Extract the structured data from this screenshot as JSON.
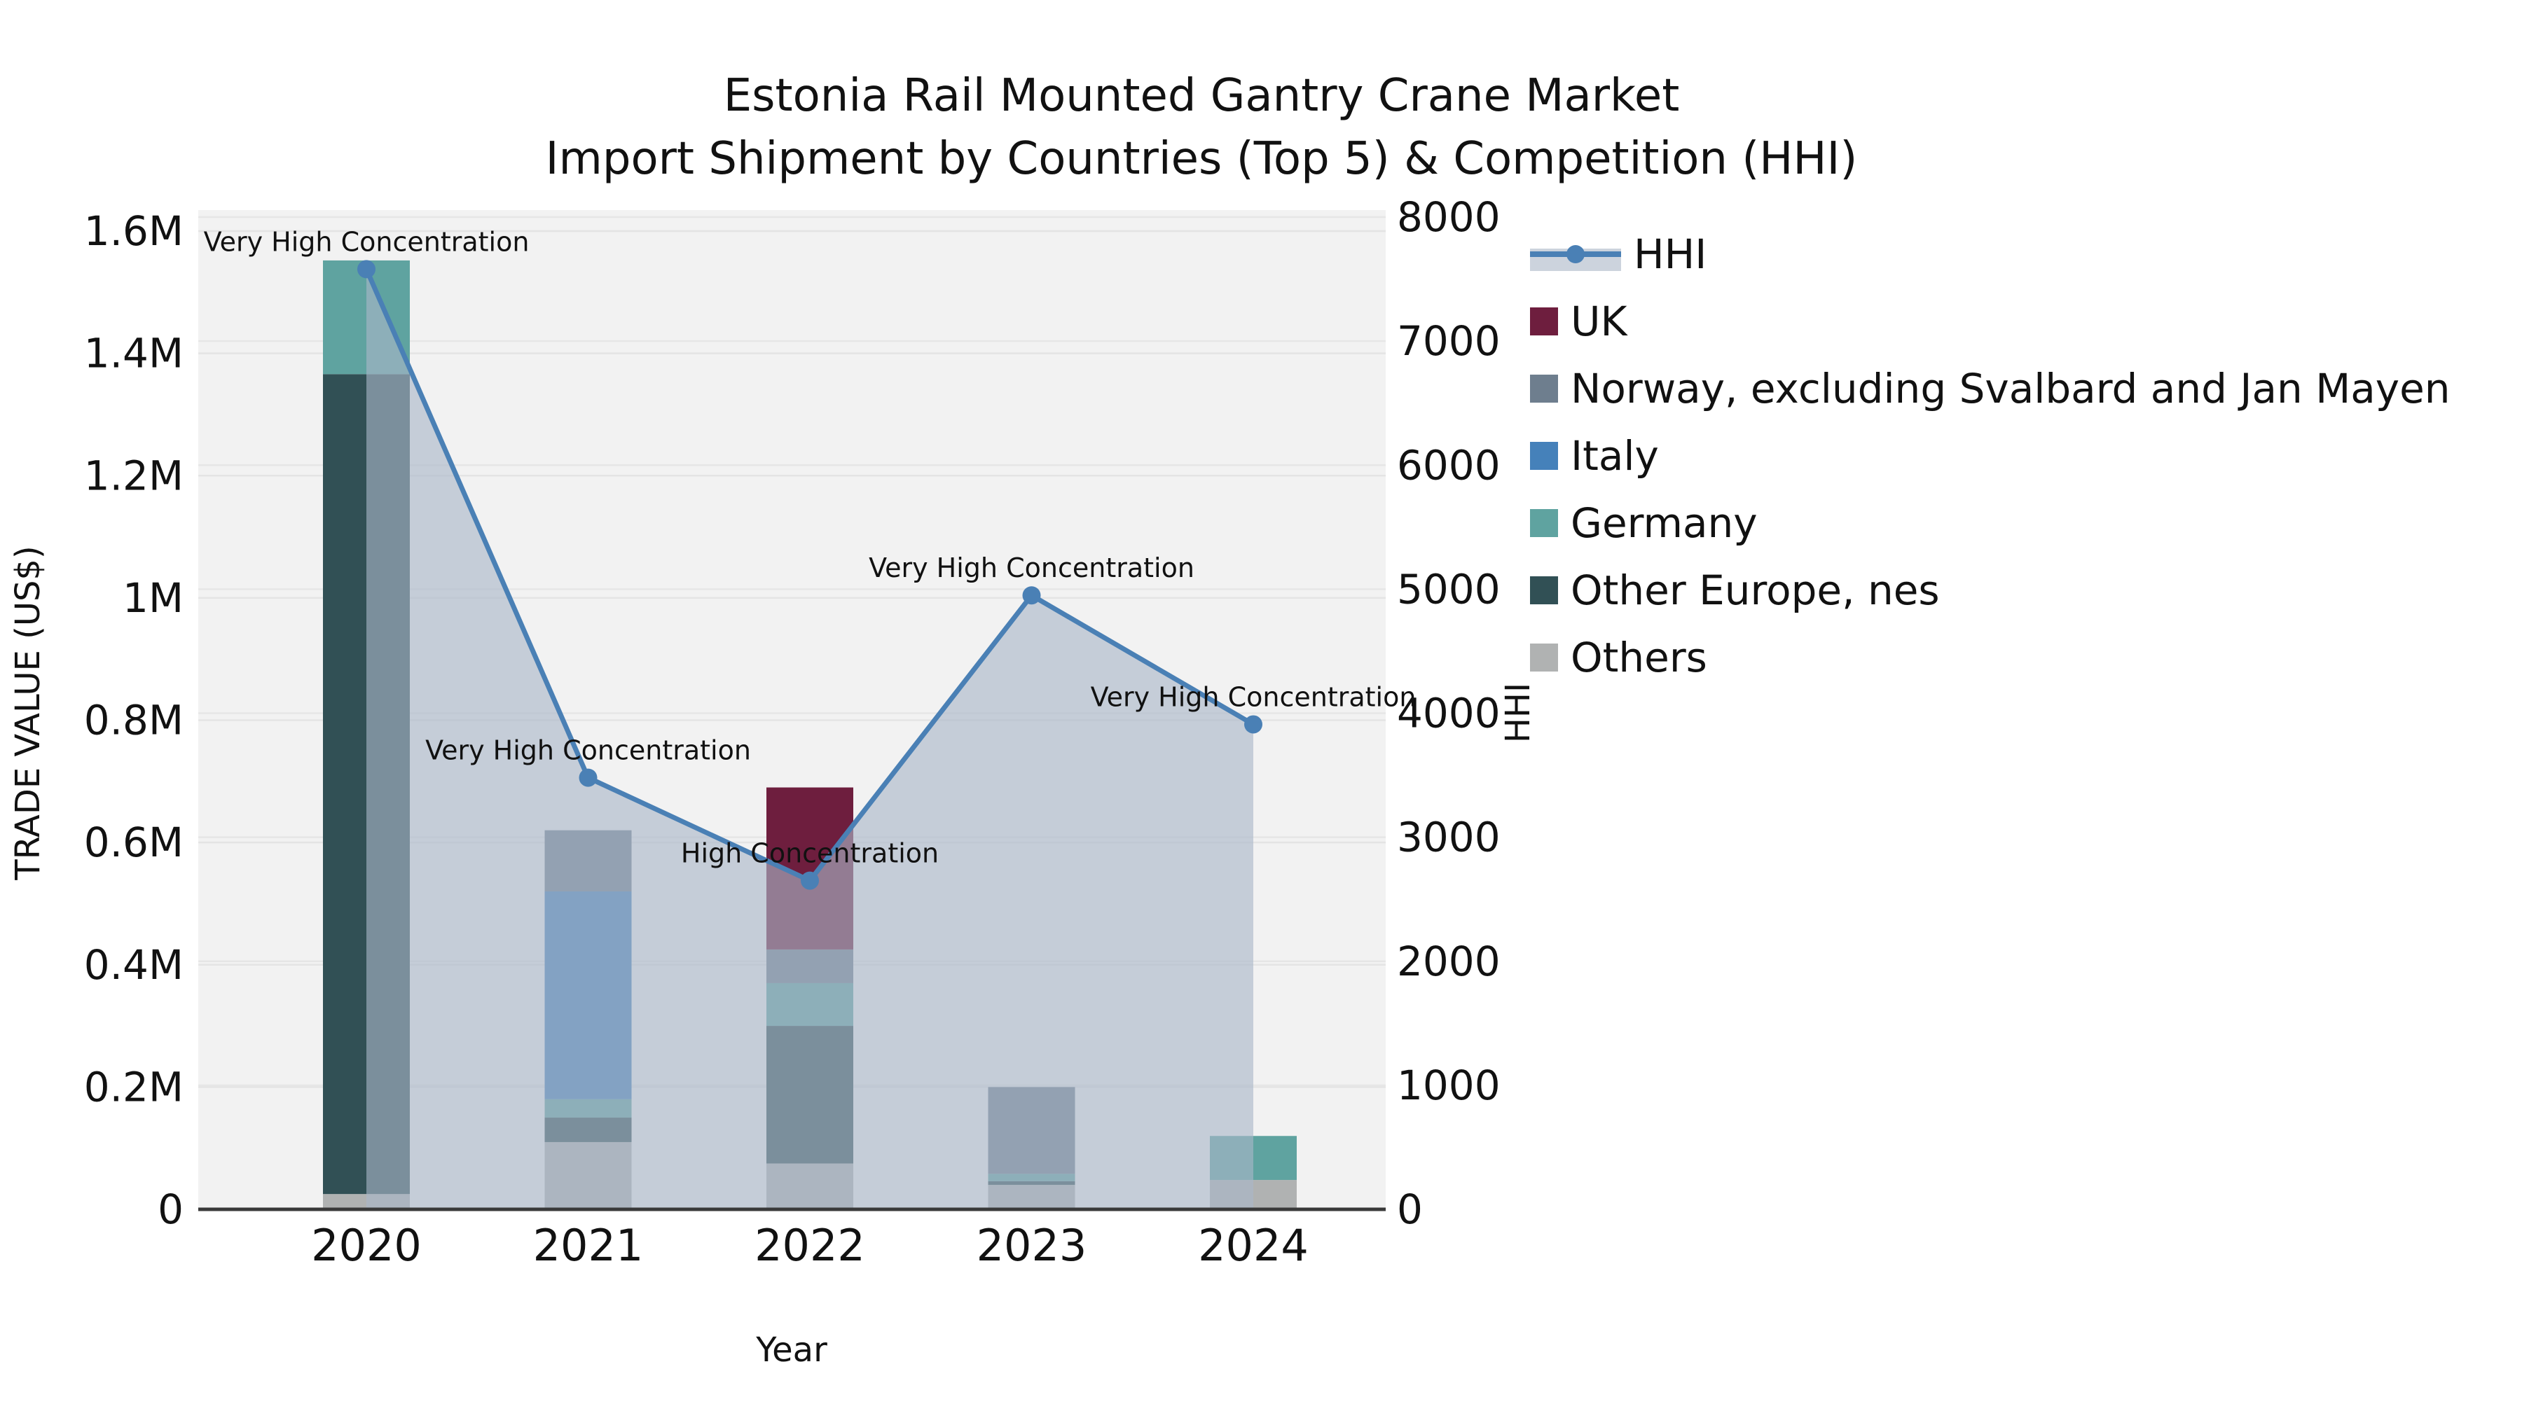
{
  "title": {
    "line1": "Estonia Rail Mounted Gantry Crane Market",
    "line2": "Import Shipment by Countries (Top 5) & Competition (HHI)"
  },
  "colors": {
    "hhi_line": "#4a80b5",
    "hhi_area_fill": "#aab6c8",
    "hhi_legend_band": "#ccd3dd",
    "uk": "#6e1e3e",
    "norway": "#6e7e8e",
    "italy": "#4581ba",
    "germany": "#5fa3a0",
    "other_europe": "#315055",
    "others": "#b0b2b2",
    "plot_background": "#f2f2f2",
    "gridline": "#e4e4e4",
    "axis_line": "#3a3a3a",
    "text": "#111111"
  },
  "legend_entries": [
    "HHI",
    "UK",
    "Norway, excluding Svalbard and Jan Mayen",
    "Italy",
    "Germany",
    "Other Europe, nes",
    "Others"
  ],
  "chart_data": {
    "type": [
      "stacked-bar",
      "line"
    ],
    "title": "Estonia Rail Mounted Gantry Crane Market — Import Shipment by Countries (Top 5) & Competition (HHI)",
    "categories": [
      "2020",
      "2021",
      "2022",
      "2023",
      "2024"
    ],
    "xlabel": "Year",
    "ylabel_left": "TRADE VALUE (US$)",
    "ylabel_right": "HHI",
    "y_left": {
      "max": 1600000,
      "tick_values": [
        0,
        200000,
        400000,
        600000,
        800000,
        1000000,
        1200000,
        1400000,
        1600000
      ],
      "tick_labels": [
        "0",
        "0.2M",
        "0.4M",
        "0.6M",
        "0.8M",
        "1M",
        "1.2M",
        "1.4M",
        "1.6M"
      ]
    },
    "y_right": {
      "max": 8000,
      "tick_values": [
        0,
        1000,
        2000,
        3000,
        4000,
        5000,
        6000,
        7000,
        8000
      ],
      "tick_labels": [
        "0",
        "1000",
        "2000",
        "3000",
        "4000",
        "5000",
        "6000",
        "7000",
        "8000"
      ]
    },
    "grid": true,
    "legend_position": "right",
    "series": [
      {
        "name": "Others",
        "color": "#b0b2b2",
        "values": [
          25000,
          110000,
          75000,
          40000,
          48000
        ]
      },
      {
        "name": "Other Europe, nes",
        "color": "#315055",
        "values": [
          1341000,
          40000,
          225000,
          6000,
          0
        ]
      },
      {
        "name": "Germany",
        "color": "#5fa3a0",
        "values": [
          186000,
          30000,
          70000,
          12000,
          72000
        ]
      },
      {
        "name": "Italy",
        "color": "#4581ba",
        "values": [
          0,
          340000,
          0,
          0,
          0
        ]
      },
      {
        "name": "Norway, excluding Svalbard and Jan Mayen",
        "color": "#6e7e8e",
        "values": [
          0,
          100000,
          55000,
          142000,
          0
        ]
      },
      {
        "name": "UK",
        "color": "#6e1e3e",
        "values": [
          0,
          0,
          265000,
          0,
          0
        ]
      }
    ],
    "line_series": {
      "name": "HHI",
      "color": "#4a80b5",
      "area_fill": "#aab6c8",
      "values": [
        7580,
        3480,
        2650,
        4950,
        3910
      ]
    },
    "annotations": [
      {
        "year": "2020",
        "text": "Very High Concentration"
      },
      {
        "year": "2021",
        "text": "Very High Concentration"
      },
      {
        "year": "2022",
        "text": "High Concentration"
      },
      {
        "year": "2023",
        "text": "Very High Concentration"
      },
      {
        "year": "2024",
        "text": "Very High Concentration"
      }
    ]
  }
}
